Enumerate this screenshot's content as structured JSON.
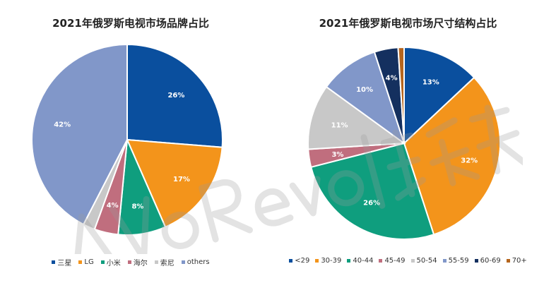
{
  "chart_data": [
    {
      "type": "pie",
      "title": "2021年俄罗斯电视市场品牌占比",
      "categories": [
        "三星",
        "LG",
        "小米",
        "海尔",
        "索尼",
        "others"
      ],
      "values": [
        26,
        17,
        8,
        4,
        2,
        42
      ],
      "labels": [
        "26%",
        "17%",
        "8%",
        "4%",
        "",
        "42%"
      ],
      "colors": [
        "#0a4f9e",
        "#f3941b",
        "#0f9e7e",
        "#c06e7e",
        "#c8c8c8",
        "#8197c9"
      ],
      "legend_position": "bottom"
    },
    {
      "type": "pie",
      "title": "2021年俄罗斯电视市场尺寸结构占比",
      "categories": [
        "<29",
        "30-39",
        "40-44",
        "45-49",
        "50-54",
        "55-59",
        "60-69",
        "70+"
      ],
      "values": [
        13,
        32,
        26,
        3,
        11,
        10,
        4,
        1
      ],
      "labels": [
        "13%",
        "32%",
        "26%",
        "3%",
        "11%",
        "10%",
        "4%",
        ""
      ],
      "colors": [
        "#0a4f9e",
        "#f3941b",
        "#0f9e7e",
        "#c06e7e",
        "#c8c8c8",
        "#8197c9",
        "#14305f",
        "#b5651d"
      ],
      "legend_position": "bottom"
    }
  ]
}
